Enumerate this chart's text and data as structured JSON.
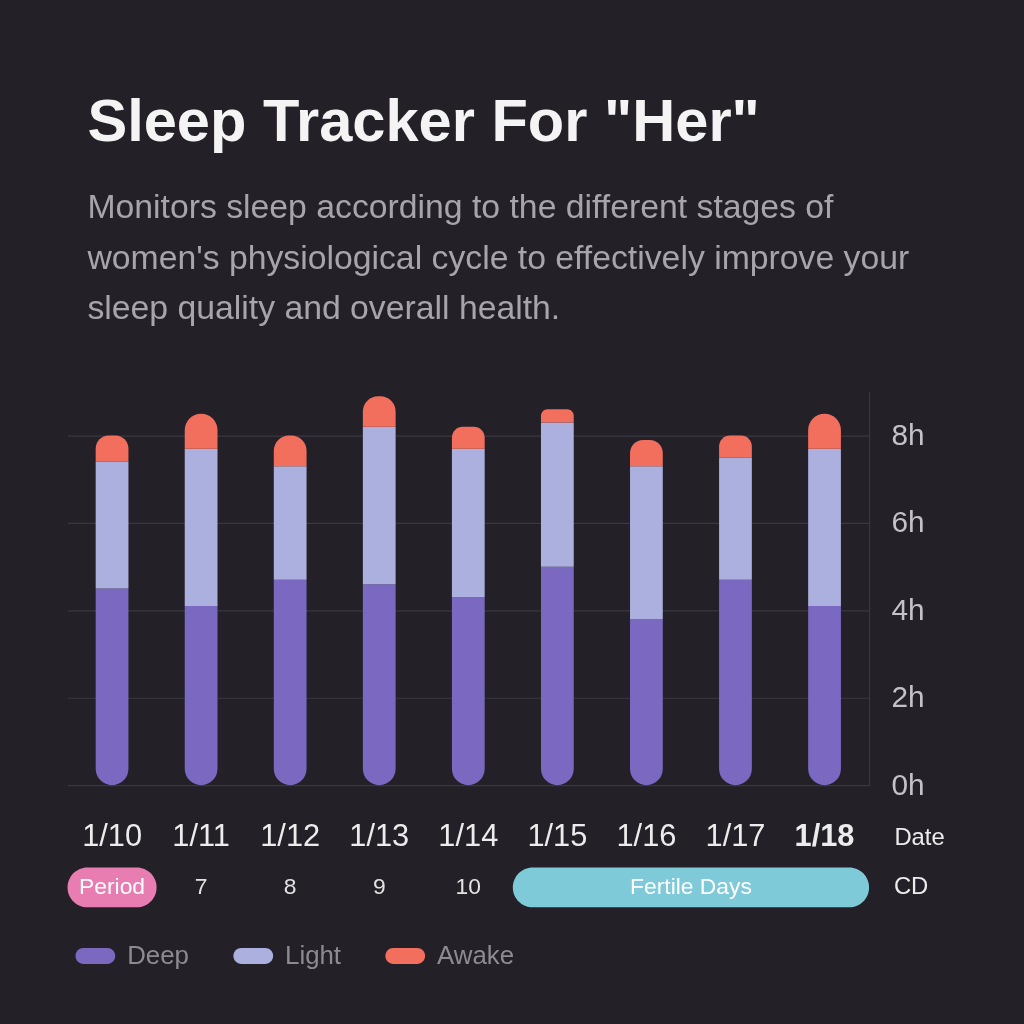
{
  "chart_data": {
    "type": "bar",
    "title": "Sleep Tracker For \"Her\"",
    "subtitle": "Monitors sleep according to the different stages of women's physiological cycle to effectively improve your sleep quality and overall health.",
    "xlabel": "Date",
    "categories": [
      "1/10",
      "1/11",
      "1/12",
      "1/13",
      "1/14",
      "1/15",
      "1/16",
      "1/17",
      "1/18"
    ],
    "series": [
      {
        "name": "Deep",
        "color": "#7b69c1",
        "values": [
          4.5,
          4.1,
          4.7,
          4.6,
          4.3,
          5.0,
          3.8,
          4.7,
          4.1
        ]
      },
      {
        "name": "Light",
        "color": "#abb0de",
        "values": [
          2.9,
          3.6,
          2.6,
          3.6,
          3.4,
          3.3,
          3.5,
          2.8,
          3.6
        ]
      },
      {
        "name": "Awake",
        "color": "#f26f5e",
        "values": [
          0.6,
          0.8,
          0.7,
          0.7,
          0.5,
          0.3,
          0.6,
          0.5,
          0.8
        ]
      }
    ],
    "stacked": true,
    "ylim": [
      0,
      9
    ],
    "yticks": [
      {
        "value": 0,
        "label": "0h"
      },
      {
        "value": 2,
        "label": "2h"
      },
      {
        "value": 4,
        "label": "4h"
      },
      {
        "value": 6,
        "label": "6h"
      },
      {
        "value": 8,
        "label": "8h"
      }
    ],
    "grid": "y",
    "legend": "bottom",
    "annotations": [
      "Period",
      "7",
      "8",
      "9",
      "10",
      "Fertile Days",
      "CD"
    ]
  }
}
